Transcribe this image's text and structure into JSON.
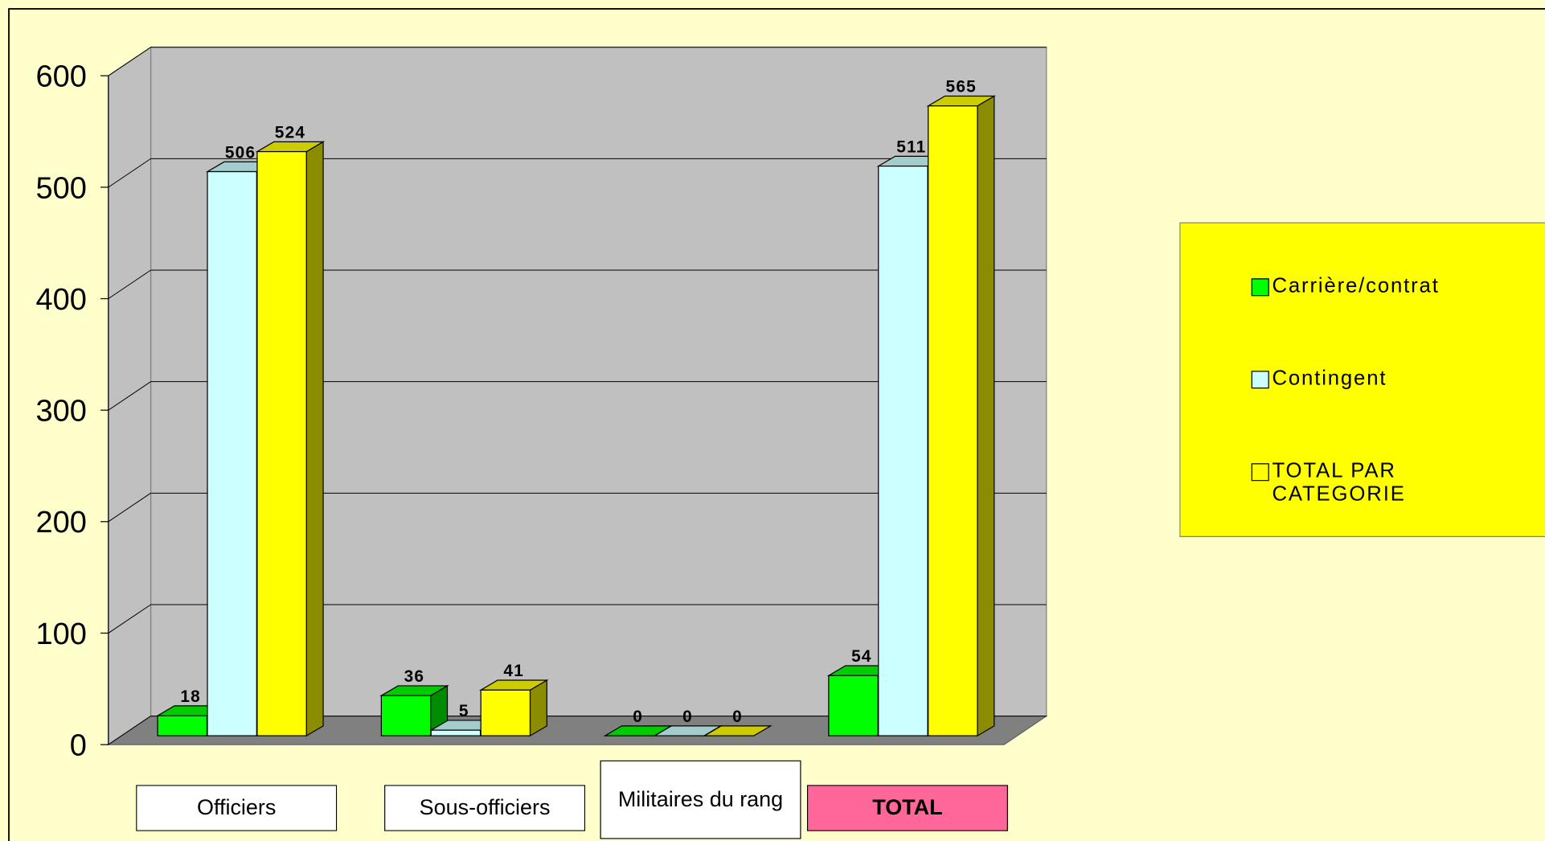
{
  "chart_data": {
    "type": "bar3d",
    "categories": [
      "Officiers",
      "Sous-officiers",
      "Militaires du rang",
      "TOTAL"
    ],
    "series": [
      {
        "name": "Carrière/contrat",
        "color": "#00ff00",
        "values": [
          18,
          36,
          0,
          54
        ]
      },
      {
        "name": "Contingent",
        "color": "#ccffff",
        "values": [
          506,
          5,
          0,
          511
        ]
      },
      {
        "name": "TOTAL PAR CATEGORIE",
        "color": "#ffff00",
        "values": [
          524,
          41,
          0,
          565
        ]
      }
    ],
    "ylim": [
      0,
      600
    ],
    "yticks": [
      0,
      100,
      200,
      300,
      400,
      500,
      600
    ],
    "grid": true,
    "legend": "right"
  }
}
